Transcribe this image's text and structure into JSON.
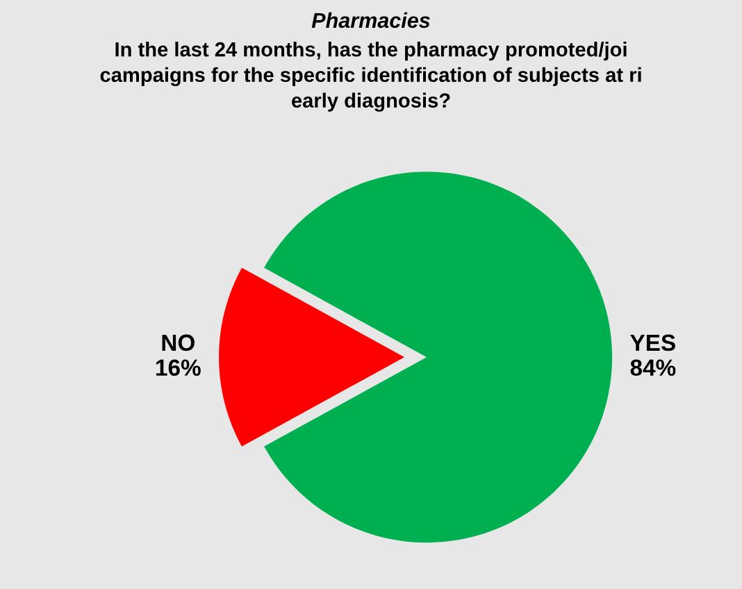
{
  "chart_data": {
    "type": "pie",
    "title": "Pharmacies",
    "subtitle": "In the last 24 months, has the pharmacy promoted/joi\ncampaigns for the specific identification of subjects at ri\nearly diagnosis?",
    "categories": [
      "YES",
      "NO"
    ],
    "values": [
      84,
      16
    ],
    "colors": [
      "#00b050",
      "#ff0000"
    ],
    "value_labels": [
      "84%",
      "16%"
    ]
  }
}
